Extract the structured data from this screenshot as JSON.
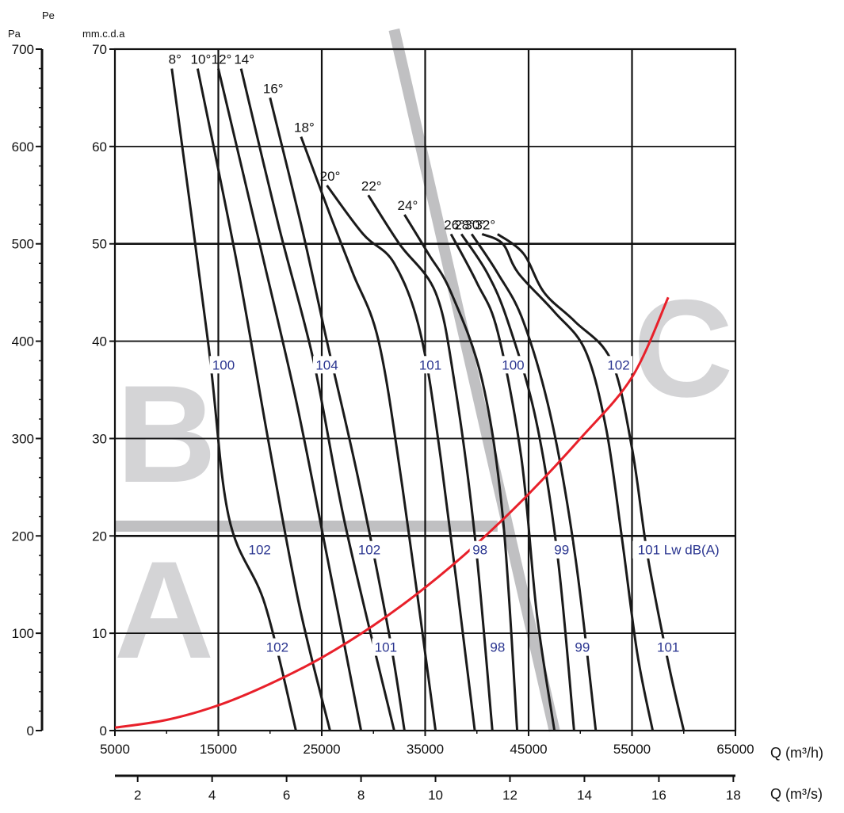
{
  "chart_data": {
    "type": "line",
    "axis_labels": {
      "pa": "Pa",
      "pe": "Pe",
      "mmcda": "mm.c.d.a",
      "q_m3h": "Q (m³/h)",
      "q_m3s": "Q (m³/s)"
    },
    "pa_axis": {
      "range": [
        0,
        700
      ],
      "ticks": [
        "0",
        "100",
        "200",
        "300",
        "400",
        "500",
        "600",
        "700"
      ]
    },
    "mmcda_axis": {
      "range": [
        0,
        70
      ],
      "ticks": [
        "0",
        "10",
        "20",
        "30",
        "40",
        "50",
        "60",
        "70"
      ]
    },
    "q_m3h_axis": {
      "range": [
        5000,
        65000
      ],
      "ticks": [
        "5000",
        "15000",
        "25000",
        "35000",
        "45000",
        "55000",
        "65000"
      ]
    },
    "q_m3s_axis": {
      "range": [
        1.389,
        18.056
      ],
      "ticks": [
        "2",
        "4",
        "6",
        "8",
        "10",
        "12",
        "14",
        "16",
        "18"
      ]
    },
    "grid": true,
    "zones": [
      {
        "label": "A",
        "color": "#d4d4d6"
      },
      {
        "label": "B",
        "color": "#d4d4d6"
      },
      {
        "label": "C",
        "color": "#d4d4d6"
      }
    ],
    "gray_bands": [
      {
        "points": [
          [
            5000,
            21
          ],
          [
            42000,
            21
          ]
        ]
      },
      {
        "points": [
          [
            32000,
            72
          ],
          [
            47500,
            0
          ]
        ]
      }
    ],
    "series": [
      {
        "name": "8°",
        "points": [
          [
            10500,
            68
          ],
          [
            14000,
            40
          ],
          [
            16000,
            22
          ],
          [
            19500,
            13
          ],
          [
            22500,
            0
          ]
        ]
      },
      {
        "name": "10°",
        "points": [
          [
            13000,
            68
          ],
          [
            16800,
            48
          ],
          [
            19800,
            30
          ],
          [
            22800,
            13
          ],
          [
            25800,
            0
          ]
        ]
      },
      {
        "name": "12°",
        "points": [
          [
            15000,
            68
          ],
          [
            19000,
            50
          ],
          [
            22500,
            34
          ],
          [
            25500,
            18
          ],
          [
            28800,
            0
          ]
        ]
      },
      {
        "name": "14°",
        "points": [
          [
            17200,
            68
          ],
          [
            20800,
            52
          ],
          [
            24200,
            38
          ],
          [
            27300,
            21
          ],
          [
            32000,
            0
          ]
        ]
      },
      {
        "name": "16°",
        "points": [
          [
            20000,
            65
          ],
          [
            23000,
            52
          ],
          [
            25500,
            40
          ],
          [
            28500,
            26
          ],
          [
            31500,
            10
          ],
          [
            33000,
            0
          ]
        ]
      },
      {
        "name": "18°",
        "points": [
          [
            23000,
            61
          ],
          [
            25800,
            53
          ],
          [
            28000,
            47
          ],
          [
            30500,
            40
          ],
          [
            32800,
            25
          ],
          [
            36000,
            0
          ]
        ]
      },
      {
        "name": "20°",
        "points": [
          [
            25500,
            56
          ],
          [
            29000,
            51
          ],
          [
            32000,
            48
          ],
          [
            34500,
            41
          ],
          [
            36500,
            28
          ],
          [
            39800,
            0
          ]
        ]
      },
      {
        "name": "22°",
        "points": [
          [
            29500,
            55
          ],
          [
            32500,
            50
          ],
          [
            36000,
            45
          ],
          [
            37800,
            36
          ],
          [
            39800,
            20
          ],
          [
            41500,
            0
          ]
        ]
      },
      {
        "name": "24°",
        "points": [
          [
            33000,
            53
          ],
          [
            35300,
            49
          ],
          [
            37500,
            45
          ],
          [
            40500,
            36
          ],
          [
            42500,
            22
          ],
          [
            43900,
            0
          ]
        ]
      },
      {
        "name": "26°",
        "points": [
          [
            37500,
            51
          ],
          [
            40000,
            46
          ],
          [
            42000,
            41
          ],
          [
            44300,
            28
          ],
          [
            45800,
            12
          ],
          [
            47500,
            0
          ]
        ]
      },
      {
        "name": "28°",
        "points": [
          [
            38500,
            51
          ],
          [
            41000,
            47
          ],
          [
            43000,
            42
          ],
          [
            45700,
            32
          ],
          [
            47800,
            18
          ],
          [
            49400,
            0
          ]
        ]
      },
      {
        "name": "30°",
        "points": [
          [
            39500,
            51
          ],
          [
            42000,
            47
          ],
          [
            44500,
            42
          ],
          [
            47200,
            32
          ],
          [
            49500,
            18
          ],
          [
            51500,
            0
          ]
        ]
      },
      {
        "name": "32°",
        "points": [
          [
            40500,
            51
          ],
          [
            42500,
            50
          ],
          [
            44000,
            47
          ],
          [
            47500,
            43
          ],
          [
            50500,
            39
          ],
          [
            52500,
            31
          ],
          [
            54000,
            20
          ],
          [
            55500,
            8
          ],
          [
            57000,
            0
          ]
        ]
      },
      {
        "points": [
          [
            42000,
            51
          ],
          [
            44500,
            49
          ],
          [
            46500,
            45
          ],
          [
            49500,
            42
          ],
          [
            53000,
            38
          ],
          [
            55000,
            29
          ],
          [
            56500,
            18
          ],
          [
            58500,
            7
          ],
          [
            60000,
            0
          ]
        ]
      }
    ],
    "system_curve": {
      "color": "#e8202a",
      "points": [
        [
          5000,
          0.3
        ],
        [
          10000,
          1.1
        ],
        [
          15000,
          2.6
        ],
        [
          20000,
          4.8
        ],
        [
          25000,
          7.5
        ],
        [
          30000,
          10.8
        ],
        [
          35000,
          14.7
        ],
        [
          40000,
          19.2
        ],
        [
          45000,
          24.3
        ],
        [
          50000,
          30
        ],
        [
          55000,
          36.3
        ],
        [
          58500,
          44.5
        ]
      ]
    },
    "noise_labels": [
      {
        "text": "100",
        "q": 15500,
        "mm": 37.5
      },
      {
        "text": "104",
        "q": 25500,
        "mm": 37.5
      },
      {
        "text": "101",
        "q": 35500,
        "mm": 37.5
      },
      {
        "text": "100",
        "q": 43500,
        "mm": 37.5
      },
      {
        "text": "102",
        "q": 53700,
        "mm": 37.5
      },
      {
        "text": "102",
        "q": 19000,
        "mm": 18.5
      },
      {
        "text": "102",
        "q": 29600,
        "mm": 18.5
      },
      {
        "text": "98",
        "q": 40300,
        "mm": 18.5
      },
      {
        "text": "99",
        "q": 48200,
        "mm": 18.5
      },
      {
        "text": "101 Lw dB(A)",
        "q": 59500,
        "mm": 18.5
      },
      {
        "text": "102",
        "q": 20700,
        "mm": 8.5
      },
      {
        "text": "101",
        "q": 31200,
        "mm": 8.5
      },
      {
        "text": "98",
        "q": 42000,
        "mm": 8.5
      },
      {
        "text": "99",
        "q": 50200,
        "mm": 8.5
      },
      {
        "text": "101",
        "q": 58500,
        "mm": 8.5
      }
    ],
    "noise_label_color": "#2a3590",
    "curve_color": "#1a1a1a"
  }
}
